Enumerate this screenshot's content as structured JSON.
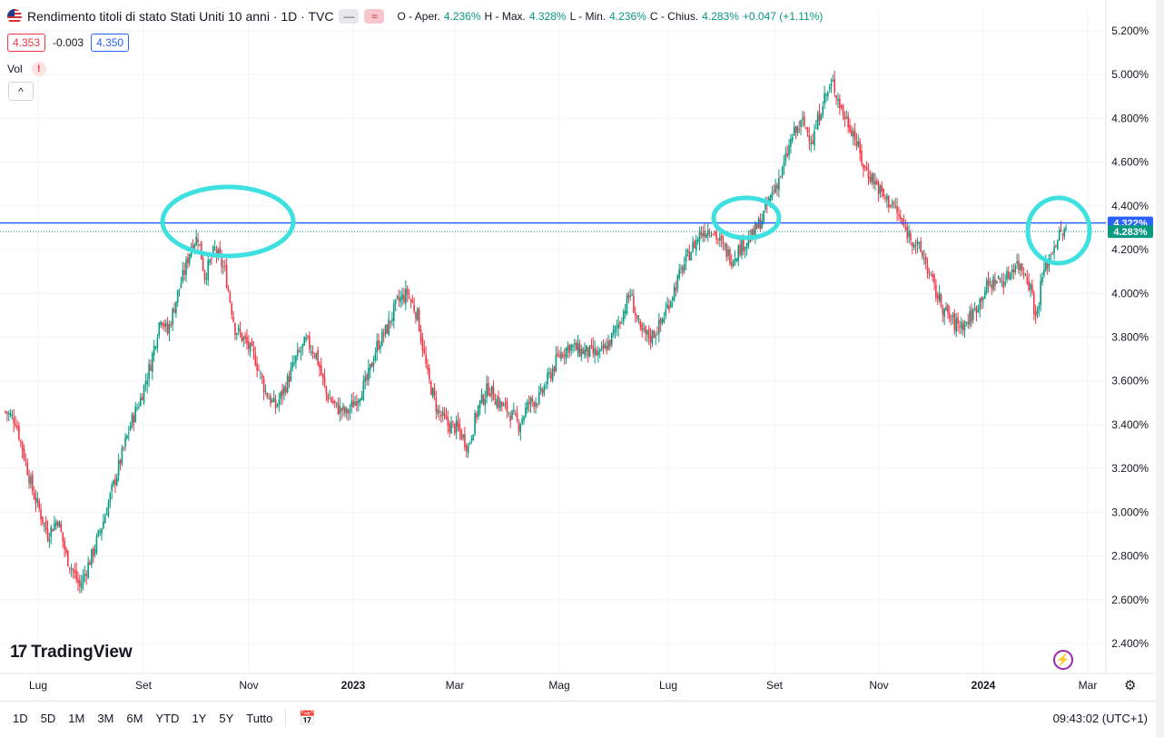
{
  "header": {
    "title": "Rendimento titoli di stato Stati Uniti 10 anni · 1D · TVC",
    "ohlc": {
      "open_label": "O - Aper.",
      "open": "4.236%",
      "high_label": "H - Max.",
      "high": "4.328%",
      "low_label": "L - Min.",
      "low": "4.236%",
      "close_label": "C - Chius.",
      "close": "4.283%",
      "change": "+0.047 (+1.11%)"
    },
    "pill_gray": "—",
    "pill_red": "≈"
  },
  "quote": {
    "bid": "4.353",
    "spread": "-0.003",
    "ask": "4.350"
  },
  "volume": {
    "label": "Vol",
    "warning": "!"
  },
  "collapse_icon": "^",
  "logo": {
    "mark": "17",
    "text": "TradingView"
  },
  "bottom_bar": {
    "ranges": [
      "1D",
      "5D",
      "1M",
      "3M",
      "6M",
      "YTD",
      "1Y",
      "5Y",
      "Tutto"
    ],
    "time": "09:43:02 (UTC+1)"
  },
  "colors": {
    "up": "#089981",
    "down": "#f23645",
    "hline": "#2962ff",
    "circle": "#3fe0e0",
    "price_tag_blue": "#2962ff",
    "price_tag_green": "#089981"
  },
  "chart_data": {
    "type": "candlestick",
    "y_unit": "%",
    "ylim": [
      2.4,
      5.2
    ],
    "y_ticks": [
      "5.200%",
      "5.000%",
      "4.800%",
      "4.600%",
      "4.400%",
      "4.200%",
      "4.000%",
      "3.800%",
      "3.600%",
      "3.400%",
      "3.200%",
      "3.000%",
      "2.800%",
      "2.600%",
      "2.400%"
    ],
    "x_labels": [
      "Lug",
      "Set",
      "Nov",
      "2023",
      "Mar",
      "Mag",
      "Lug",
      "Set",
      "Nov",
      "2024",
      "Mar"
    ],
    "x_labels_bold": [
      "2023",
      "2024"
    ],
    "horizontal_line": 4.322,
    "price_labels": [
      {
        "value": 4.322,
        "text": "4.322%",
        "color": "#2962ff"
      },
      {
        "value": 4.283,
        "text": "4.283%",
        "color": "#089981"
      }
    ],
    "anchors": [
      [
        0,
        3.46
      ],
      [
        6,
        3.42
      ],
      [
        16,
        3.1
      ],
      [
        25,
        2.9
      ],
      [
        31,
        2.97
      ],
      [
        36,
        2.8
      ],
      [
        44,
        2.66
      ],
      [
        52,
        2.82
      ],
      [
        58,
        2.96
      ],
      [
        66,
        3.18
      ],
      [
        74,
        3.4
      ],
      [
        80,
        3.52
      ],
      [
        86,
        3.68
      ],
      [
        92,
        3.9
      ],
      [
        96,
        3.82
      ],
      [
        102,
        4.0
      ],
      [
        106,
        4.1
      ],
      [
        110,
        4.22
      ],
      [
        114,
        4.26
      ],
      [
        118,
        4.08
      ],
      [
        124,
        4.2
      ],
      [
        130,
        4.1
      ],
      [
        136,
        3.84
      ],
      [
        142,
        3.78
      ],
      [
        148,
        3.7
      ],
      [
        154,
        3.55
      ],
      [
        160,
        3.48
      ],
      [
        166,
        3.58
      ],
      [
        172,
        3.7
      ],
      [
        178,
        3.78
      ],
      [
        184,
        3.72
      ],
      [
        190,
        3.54
      ],
      [
        196,
        3.48
      ],
      [
        202,
        3.45
      ],
      [
        208,
        3.52
      ],
      [
        214,
        3.6
      ],
      [
        220,
        3.76
      ],
      [
        226,
        3.84
      ],
      [
        232,
        3.96
      ],
      [
        238,
        4.0
      ],
      [
        244,
        3.9
      ],
      [
        250,
        3.62
      ],
      [
        256,
        3.46
      ],
      [
        262,
        3.4
      ],
      [
        268,
        3.38
      ],
      [
        274,
        3.3
      ],
      [
        280,
        3.48
      ],
      [
        286,
        3.57
      ],
      [
        292,
        3.5
      ],
      [
        298,
        3.46
      ],
      [
        304,
        3.4
      ],
      [
        310,
        3.5
      ],
      [
        316,
        3.52
      ],
      [
        322,
        3.62
      ],
      [
        328,
        3.72
      ],
      [
        334,
        3.76
      ],
      [
        340,
        3.74
      ],
      [
        346,
        3.73
      ],
      [
        352,
        3.72
      ],
      [
        358,
        3.78
      ],
      [
        364,
        3.88
      ],
      [
        370,
        4.0
      ],
      [
        376,
        3.82
      ],
      [
        382,
        3.8
      ],
      [
        388,
        3.86
      ],
      [
        394,
        3.98
      ],
      [
        400,
        4.1
      ],
      [
        406,
        4.2
      ],
      [
        412,
        4.28
      ],
      [
        418,
        4.3
      ],
      [
        424,
        4.22
      ],
      [
        430,
        4.16
      ],
      [
        436,
        4.22
      ],
      [
        442,
        4.26
      ],
      [
        448,
        4.34
      ],
      [
        454,
        4.46
      ],
      [
        460,
        4.56
      ],
      [
        466,
        4.72
      ],
      [
        472,
        4.78
      ],
      [
        478,
        4.7
      ],
      [
        484,
        4.88
      ],
      [
        490,
        4.96
      ],
      [
        496,
        4.82
      ],
      [
        502,
        4.74
      ],
      [
        508,
        4.58
      ],
      [
        514,
        4.52
      ],
      [
        520,
        4.44
      ],
      [
        526,
        4.4
      ],
      [
        532,
        4.3
      ],
      [
        538,
        4.24
      ],
      [
        544,
        4.16
      ],
      [
        550,
        4.02
      ],
      [
        556,
        3.92
      ],
      [
        562,
        3.86
      ],
      [
        568,
        3.86
      ],
      [
        574,
        3.92
      ],
      [
        580,
        4.02
      ],
      [
        586,
        4.06
      ],
      [
        592,
        4.06
      ],
      [
        598,
        4.14
      ],
      [
        604,
        4.1
      ],
      [
        608,
        4.0
      ],
      [
        610,
        3.88
      ],
      [
        614,
        4.08
      ],
      [
        618,
        4.16
      ],
      [
        622,
        4.24
      ],
      [
        626,
        4.28
      ],
      [
        628,
        4.28
      ]
    ],
    "annotations": [
      {
        "type": "hand-drawn-circle",
        "label": "",
        "x_index": 114,
        "y_value": 4.28
      },
      {
        "type": "hand-drawn-circle",
        "label": "",
        "x_index": 420,
        "y_value": 4.33
      },
      {
        "type": "hand-drawn-circle",
        "label": "",
        "x_index": 622,
        "y_value": 4.29
      }
    ]
  }
}
